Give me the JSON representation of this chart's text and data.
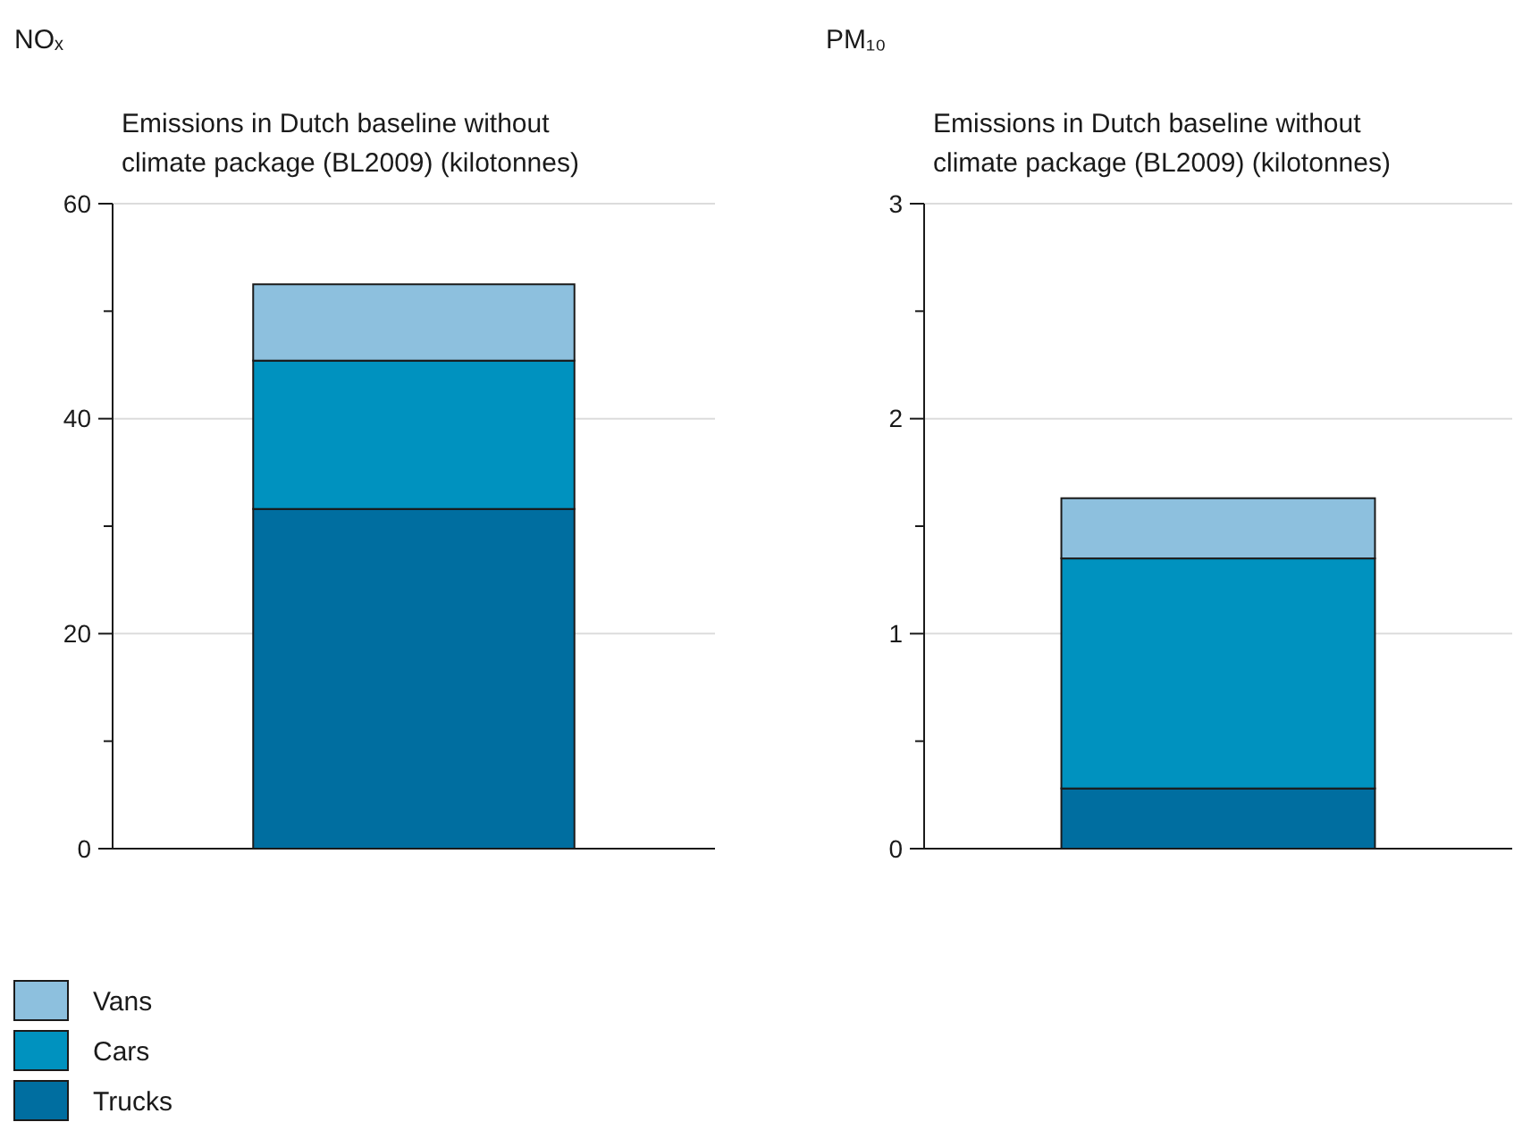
{
  "chart_data": [
    {
      "type": "bar",
      "title": "NOₓ",
      "subtitle": "Emissions in Dutch baseline without climate package (BL2009) (kilotonnes)",
      "categories": [
        null
      ],
      "stacked": true,
      "ylim": [
        0,
        60
      ],
      "yticks": [
        0,
        {
          "value": 10,
          "label": null
        },
        20,
        {
          "value": 30,
          "label": null
        },
        40,
        {
          "value": 50,
          "label": null
        },
        60
      ],
      "grid": "y",
      "legend": "bottom",
      "series": [
        {
          "name": "Trucks",
          "color": "#006ea0",
          "values": [
            31.6
          ]
        },
        {
          "name": "Cars",
          "color": "#0092bf",
          "values": [
            13.8
          ]
        },
        {
          "name": "Vans",
          "color": "#8dc0de",
          "values": [
            7.1
          ]
        }
      ]
    },
    {
      "type": "bar",
      "title": "PM₁₀",
      "subtitle": "Emissions in Dutch baseline without climate package (BL2009) (kilotonnes)",
      "categories": [
        null
      ],
      "stacked": true,
      "ylim": [
        0,
        3
      ],
      "yticks": [
        0,
        {
          "value": 0.5,
          "label": null
        },
        1,
        {
          "value": 1.5,
          "label": null
        },
        2,
        {
          "value": 2.5,
          "label": null
        },
        3
      ],
      "grid": "y",
      "legend": false,
      "series": [
        {
          "color": "#006ea0",
          "values": [
            0.28
          ]
        },
        {
          "color": "#0092bf",
          "values": [
            1.07
          ]
        },
        {
          "color": "#8dc0de",
          "values": [
            0.28
          ]
        }
      ]
    }
  ]
}
